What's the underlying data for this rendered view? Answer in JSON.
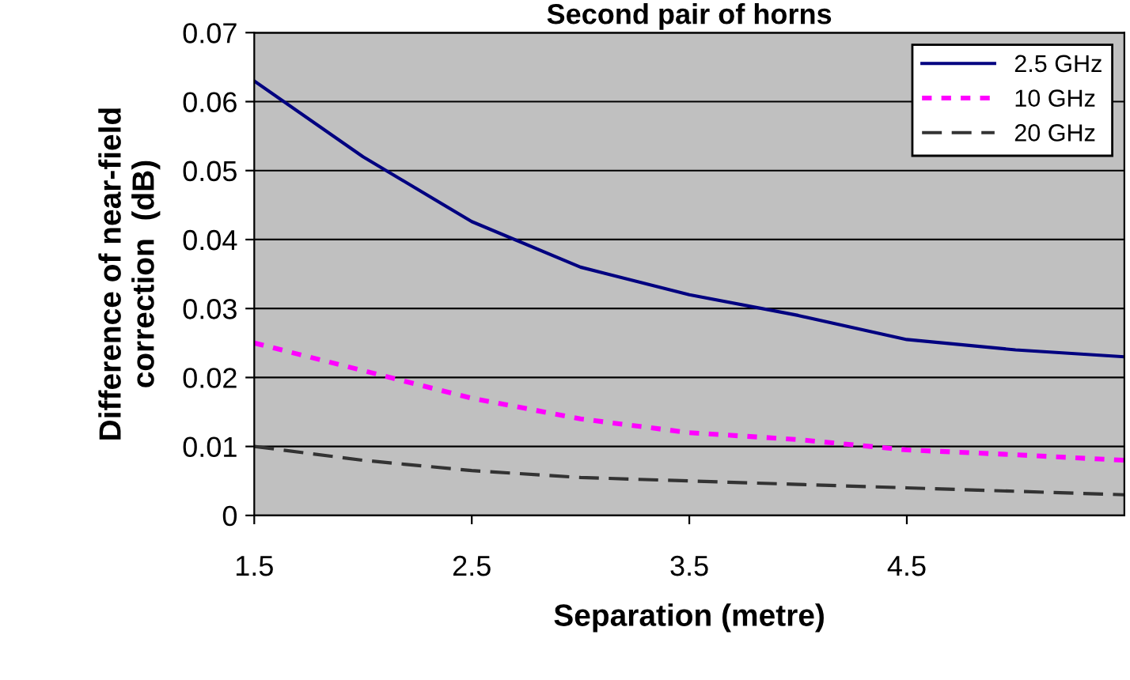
{
  "chart_data": {
    "type": "line",
    "title": "Second pair of horns",
    "xlabel": "Separation (metre)",
    "ylabel": "Difference of near-field\ncorrection  (dB)",
    "xlim": [
      1.5,
      5.5
    ],
    "xticks": [
      1.5,
      2.5,
      3.5,
      4.5
    ],
    "ylim": [
      0,
      0.07
    ],
    "yticks": [
      0,
      0.01,
      0.02,
      0.03,
      0.04,
      0.05,
      0.06,
      0.07
    ],
    "grid": "y",
    "legend": "top right",
    "marker": "none",
    "x": [
      1.5,
      2.0,
      2.5,
      3.0,
      3.5,
      4.0,
      4.5,
      5.0,
      5.5
    ],
    "series": [
      {
        "name": "2.5 GHz",
        "color": "#000080",
        "line_style": "solid",
        "values": [
          0.063,
          0.052,
          0.0426,
          0.036,
          0.032,
          0.029,
          0.0255,
          0.024,
          0.023
        ]
      },
      {
        "name": "10 GHz",
        "color": "#ff00ff",
        "line_style": "dotted",
        "values": [
          0.025,
          0.021,
          0.017,
          0.014,
          0.012,
          0.011,
          0.0095,
          0.0088,
          0.008
        ]
      },
      {
        "name": "20 GHz",
        "color": "#333333",
        "line_style": "dashed",
        "values": [
          0.01,
          0.008,
          0.0065,
          0.0055,
          0.005,
          0.0045,
          0.004,
          0.0035,
          0.003
        ]
      }
    ]
  }
}
